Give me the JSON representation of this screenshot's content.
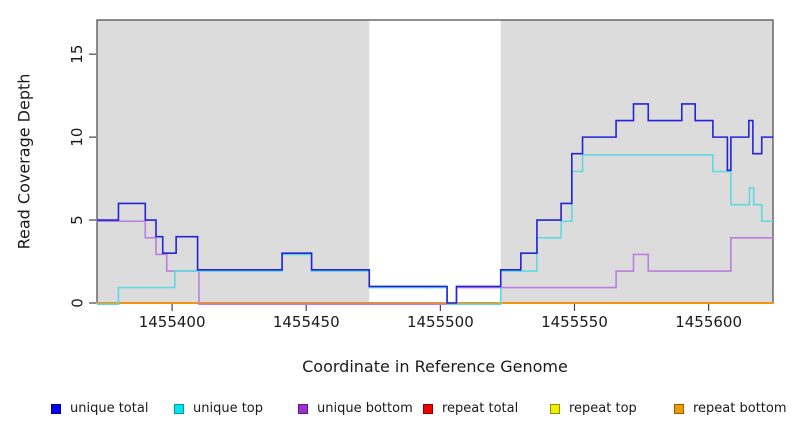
{
  "chart_data": {
    "type": "line",
    "subtype": "step-coverage",
    "title": "",
    "xlabel": "Coordinate in Reference Genome",
    "ylabel": "Read Coverage Depth",
    "xlim": [
      1455372,
      1455624
    ],
    "ylim": [
      0,
      17.06
    ],
    "xticks": [
      1455400,
      1455450,
      1455500,
      1455550,
      1455600
    ],
    "yticks": [
      0,
      5,
      10,
      15
    ],
    "grid": false,
    "legend_position": "bottom",
    "frame_color": "#454545",
    "text_color": "#1a1a1a",
    "background": {
      "color": "#dcdcdc",
      "regions": [
        [
          1455372,
          1455473.5
        ],
        [
          1455522.5,
          1455624
        ]
      ],
      "gap_note": "white band between shaded regions"
    },
    "series": [
      {
        "name": "repeat total",
        "color": "#cc1111",
        "points": [
          [
            1455372,
            0
          ]
        ]
      },
      {
        "name": "repeat top",
        "color": "#e8e800",
        "points": [
          [
            1455372,
            0
          ]
        ]
      },
      {
        "name": "repeat bottom",
        "color": "#ff8c00",
        "points": [
          [
            1455372,
            0
          ]
        ]
      },
      {
        "name": "unique bottom",
        "color": "#bb7fdd",
        "points": [
          [
            1455372,
            5
          ],
          [
            1455390,
            4
          ],
          [
            1455394,
            3
          ],
          [
            1455398,
            2
          ],
          [
            1455410,
            0
          ],
          [
            1455506,
            1
          ],
          [
            1455565.5,
            2
          ],
          [
            1455572,
            3
          ],
          [
            1455577.5,
            2
          ],
          [
            1455608.3,
            4
          ]
        ]
      },
      {
        "name": "unique top",
        "color": "#5fd8e0",
        "points": [
          [
            1455372,
            0
          ],
          [
            1455380,
            1
          ],
          [
            1455401,
            2
          ],
          [
            1455441,
            3
          ],
          [
            1455452,
            2
          ],
          [
            1455473.5,
            1
          ],
          [
            1455502.5,
            0
          ],
          [
            1455522.5,
            2
          ],
          [
            1455536,
            4
          ],
          [
            1455545,
            5
          ],
          [
            1455549,
            8
          ],
          [
            1455553,
            9
          ],
          [
            1455601.6,
            8
          ],
          [
            1455608.3,
            6
          ],
          [
            1455615.2,
            7
          ],
          [
            1455616.8,
            6
          ],
          [
            1455619.8,
            5
          ]
        ]
      },
      {
        "name": "unique total",
        "color": "#2323d8",
        "points": [
          [
            1455372,
            5
          ],
          [
            1455380,
            6
          ],
          [
            1455390,
            5
          ],
          [
            1455394,
            4
          ],
          [
            1455396.5,
            3
          ],
          [
            1455401.5,
            4
          ],
          [
            1455409.5,
            2
          ],
          [
            1455441,
            3
          ],
          [
            1455452,
            2
          ],
          [
            1455473.5,
            1
          ],
          [
            1455502.5,
            0
          ],
          [
            1455506,
            1
          ],
          [
            1455522.5,
            2
          ],
          [
            1455530,
            3
          ],
          [
            1455536,
            5
          ],
          [
            1455545,
            6
          ],
          [
            1455549,
            9
          ],
          [
            1455553,
            10
          ],
          [
            1455565.5,
            11
          ],
          [
            1455572,
            12
          ],
          [
            1455577.5,
            11
          ],
          [
            1455590,
            12
          ],
          [
            1455595,
            11
          ],
          [
            1455601.6,
            10
          ],
          [
            1455607,
            8
          ],
          [
            1455608.3,
            10
          ],
          [
            1455615,
            11
          ],
          [
            1455616.5,
            9
          ],
          [
            1455619.8,
            10
          ]
        ]
      }
    ]
  },
  "legend": {
    "items": [
      {
        "label": "unique total",
        "color": "#0000ee",
        "border": "#000090"
      },
      {
        "label": "unique top",
        "color": "#00e5ee",
        "border": "#009aa0"
      },
      {
        "label": "unique bottom",
        "color": "#9b30d0",
        "border": "#5e1a80"
      },
      {
        "label": "repeat total",
        "color": "#ee0000",
        "border": "#900000"
      },
      {
        "label": "repeat top",
        "color": "#eeee00",
        "border": "#909000"
      },
      {
        "label": "repeat bottom",
        "color": "#ee9a00",
        "border": "#905d00"
      }
    ]
  }
}
